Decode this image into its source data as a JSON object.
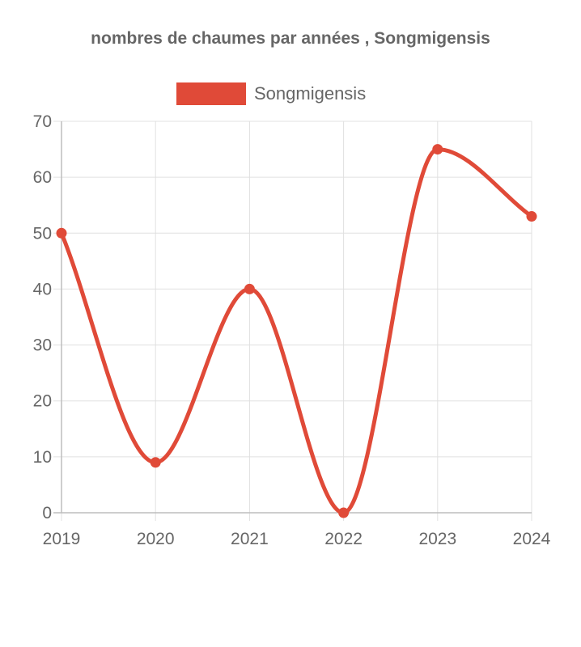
{
  "chart_data": {
    "type": "line",
    "title": "nombres de chaumes par années , Songmigensis",
    "categories": [
      "2019",
      "2020",
      "2021",
      "2022",
      "2023",
      "2024"
    ],
    "series": [
      {
        "name": "Songmigensis",
        "values": [
          50,
          9,
          40,
          0,
          65,
          53
        ],
        "color": "#e04a38"
      }
    ],
    "xlabel": "",
    "ylabel": "",
    "ylim": [
      0,
      70
    ],
    "yticks": [
      0,
      10,
      20,
      30,
      40,
      50,
      60,
      70
    ],
    "grid": true,
    "legend_position": "top-center"
  }
}
